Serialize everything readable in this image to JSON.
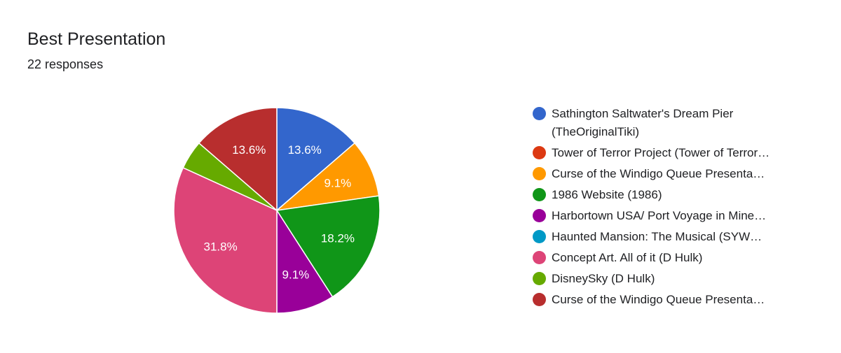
{
  "header": {
    "title": "Best Presentation",
    "subtitle": "22 responses"
  },
  "chart_data": {
    "type": "pie",
    "title": "Best Presentation",
    "total_responses": 22,
    "legend_position": "right",
    "slices": [
      {
        "label": "Sathington Saltwater's Dream Pier (TheOriginalTiki)",
        "value": 3,
        "percent": 13.6,
        "percent_label": "13.6%",
        "color": "#3366cc",
        "truncated": false
      },
      {
        "label": "Tower of Terror Project (Tower of Terror…",
        "value": 0,
        "percent": 0,
        "percent_label": "",
        "color": "#dc3912",
        "truncated": true
      },
      {
        "label": "Curse of the Windigo Queue Presenta…",
        "value": 2,
        "percent": 9.1,
        "percent_label": "9.1%",
        "color": "#ff9900",
        "truncated": true
      },
      {
        "label": "1986 Website (1986)",
        "value": 4,
        "percent": 18.2,
        "percent_label": "18.2%",
        "color": "#109618",
        "truncated": false
      },
      {
        "label": "Harbortown USA/ Port Voyage in Mine…",
        "value": 2,
        "percent": 9.1,
        "percent_label": "9.1%",
        "color": "#990099",
        "truncated": true
      },
      {
        "label": "Haunted Mansion: The Musical (SYW…",
        "value": 0,
        "percent": 0,
        "percent_label": "",
        "color": "#0099c6",
        "truncated": true
      },
      {
        "label": "Concept Art. All of it (D Hulk)",
        "value": 7,
        "percent": 31.8,
        "percent_label": "31.8%",
        "color": "#dd4477",
        "truncated": false
      },
      {
        "label": "DisneySky (D Hulk)",
        "value": 1,
        "percent": 4.5,
        "percent_label": "",
        "color": "#66aa00",
        "truncated": false
      },
      {
        "label": "Curse of the Windigo Queue Presenta…",
        "value": 3,
        "percent": 13.6,
        "percent_label": "13.6%",
        "color": "#b82e2e",
        "truncated": true
      }
    ]
  }
}
